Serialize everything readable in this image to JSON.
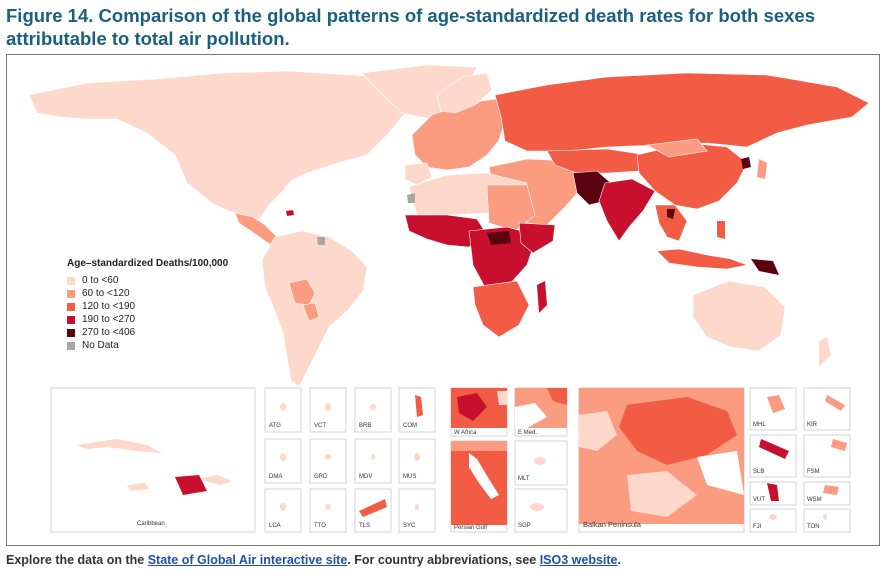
{
  "title": "Figure 14. Comparison of the global patterns of age-standardized death rates for both sexes attributable to total air pollution.",
  "legend": {
    "title": "Age–standardized Deaths/100,000",
    "items": [
      {
        "label": "0 to <60",
        "color": "#fdd8cb"
      },
      {
        "label": "60 to <120",
        "color": "#fb9b80"
      },
      {
        "label": "120 to <190",
        "color": "#f25c45"
      },
      {
        "label": "190 to <270",
        "color": "#c8102e"
      },
      {
        "label": "270 to <406",
        "color": "#5a0210"
      },
      {
        "label": "No Data",
        "color": "#a6a6a6"
      }
    ]
  },
  "insets": {
    "caribbean": "Caribbean",
    "atg": "ATG",
    "vct": "VCT",
    "brb": "BRB",
    "com": "COM",
    "dma": "DMA",
    "grd": "GRD",
    "mdv": "MDV",
    "mus": "MUS",
    "lca": "LCA",
    "tto": "TTO",
    "tls": "TLS",
    "syc": "SYC",
    "w_africa": "W Africa",
    "e_med": "E Med.",
    "mlt": "MLT",
    "persian_gulf": "Persian Gulf",
    "sgp": "SGP",
    "balkan": "Balkan Peninsula",
    "mhl": "MHL",
    "kir": "KIR",
    "slb": "SLB",
    "fsm": "FSM",
    "vut": "VUT",
    "wsm": "WSM",
    "fji": "FJI",
    "ton": "TON"
  },
  "footer": {
    "prefix": "Explore the data on the ",
    "link1": "State of Global Air interactive site",
    "middle": ". For country abbreviations, see ",
    "link2": "ISO3 website",
    "suffix": "."
  }
}
